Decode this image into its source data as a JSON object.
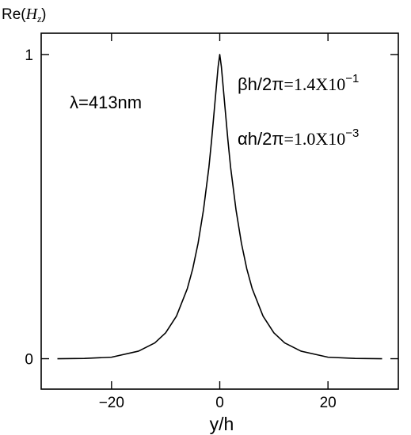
{
  "chart_data": {
    "type": "line",
    "ylabel": {
      "prefix": "Re(",
      "var": "H",
      "sub": "z",
      "suffix": ")"
    },
    "xlabel": "y/h",
    "xlim": [
      -33,
      33
    ],
    "ylim": [
      -0.1,
      1.07
    ],
    "xticks": [
      -20,
      0,
      20
    ],
    "xtick_labels": [
      "−20",
      "0",
      "20"
    ],
    "yticks": [
      0,
      1
    ],
    "ytick_labels": [
      "0",
      "1"
    ],
    "grid": false,
    "annotations": {
      "wavelength": "λ=413nm",
      "beta": {
        "sym": "βh/2π",
        "value": "=1.4X10",
        "exp": "−1"
      },
      "alpha": {
        "sym": "αh/2π",
        "value": "=1.0X10",
        "exp": "−3"
      }
    },
    "series": [
      {
        "x": [
          -30,
          -25,
          -20,
          -15,
          -12,
          -10,
          -8,
          -6,
          -5,
          -4,
          -3,
          -2,
          -1.5,
          -1,
          -0.6,
          -0.3,
          0,
          0.3,
          0.6,
          1,
          1.5,
          2,
          3,
          4,
          5,
          6,
          8,
          10,
          12,
          15,
          20,
          25,
          30
        ],
        "y": [
          0.0,
          0.001,
          0.005,
          0.025,
          0.052,
          0.085,
          0.14,
          0.23,
          0.295,
          0.38,
          0.49,
          0.63,
          0.72,
          0.82,
          0.9,
          0.96,
          1.0,
          0.96,
          0.9,
          0.82,
          0.72,
          0.63,
          0.49,
          0.38,
          0.295,
          0.23,
          0.14,
          0.085,
          0.052,
          0.025,
          0.005,
          0.001,
          0.0
        ]
      }
    ]
  }
}
